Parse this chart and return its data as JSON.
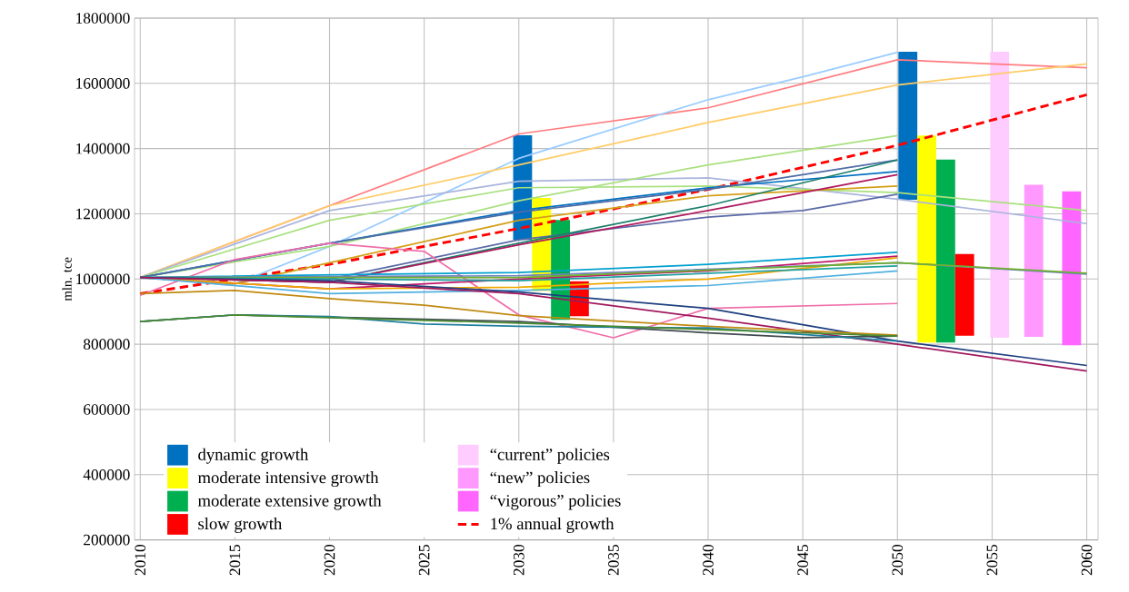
{
  "chart_data": {
    "type": "line",
    "ylabel": "mln. tce",
    "xlim": [
      2009.7,
      2060.6
    ],
    "xticks": [
      2010,
      2015,
      2020,
      2025,
      2030,
      2035,
      2040,
      2045,
      2050,
      2055,
      2060
    ],
    "ylim": [
      200000,
      1800000
    ],
    "yticks": [
      200000,
      400000,
      600000,
      800000,
      1000000,
      1200000,
      1400000,
      1600000,
      1800000
    ],
    "grid": true,
    "legend": "bottom left",
    "marker": "none",
    "series": [
      {
        "name": "dynamic growth",
        "type": "bar",
        "color": "#0070c0",
        "x": [
          2030.2,
          2050.55
        ],
        "base": [
          1120000,
          1243000
        ],
        "values": [
          321000,
          454000
        ]
      },
      {
        "name": "moderate intensive growth",
        "type": "bar",
        "color": "#ffff00",
        "x": [
          2031.2,
          2051.55
        ],
        "base": [
          963000,
          805000
        ],
        "values": [
          286000,
          635000
        ]
      },
      {
        "name": "moderate extensive growth",
        "type": "bar",
        "color": "#00b050",
        "x": [
          2032.2,
          2052.55
        ],
        "base": [
          875000,
          805000
        ],
        "values": [
          306000,
          561000
        ]
      },
      {
        "name": "slow growth",
        "type": "bar",
        "color": "#ff0000",
        "x": [
          2033.2,
          2053.55
        ],
        "base": [
          886000,
          826000
        ],
        "values": [
          107000,
          251000
        ]
      },
      {
        "name": "“current” policies",
        "type": "bar",
        "color": "#ffccff",
        "x": [
          2055.4
        ],
        "base": [
          820000
        ],
        "values": [
          877000
        ]
      },
      {
        "name": "“new” policies",
        "type": "bar",
        "color": "#ff99ff",
        "x": [
          2057.2
        ],
        "base": [
          823000
        ],
        "values": [
          466000
        ]
      },
      {
        "name": "“vigorous” policies",
        "type": "bar",
        "color": "#ff66ff",
        "x": [
          2059.2
        ],
        "base": [
          797000
        ],
        "values": [
          472000
        ]
      },
      {
        "name": "1% annual growth",
        "color": "#ff0000",
        "line_style": "dashed",
        "x": [
          2010,
          2020,
          2030,
          2040,
          2050,
          2060
        ],
        "values": [
          955000,
          1045000,
          1155000,
          1275000,
          1410000,
          1565000
        ]
      },
      {
        "color": "#ff7c80",
        "x": [
          2010,
          2020,
          2030,
          2040,
          2050,
          2055,
          2060
        ],
        "values": [
          1005000,
          1225000,
          1445000,
          1525000,
          1672000,
          1660000,
          1648000
        ]
      },
      {
        "color": "#99ccff",
        "x": [
          2010,
          2015,
          2020,
          2030,
          2040,
          2045,
          2050
        ],
        "values": [
          1005000,
          985000,
          1100000,
          1370000,
          1550000,
          1620000,
          1695000
        ]
      },
      {
        "color": "#ffcc66",
        "x": [
          2010,
          2020,
          2030,
          2040,
          2050,
          2060
        ],
        "values": [
          1005000,
          1225000,
          1350000,
          1480000,
          1595000,
          1660000
        ]
      },
      {
        "color": "#aab4dd",
        "x": [
          2010,
          2020,
          2030,
          2040,
          2050,
          2060
        ],
        "values": [
          1005000,
          1210000,
          1300000,
          1310000,
          1245000,
          1170000
        ]
      },
      {
        "color": "#a9e07f",
        "x": [
          2010,
          2020,
          2030,
          2040,
          2050,
          2060
        ],
        "values": [
          1005000,
          1180000,
          1280000,
          1285000,
          1265000,
          1210000
        ]
      },
      {
        "color": "#a9e07f",
        "x": [
          2010,
          2020,
          2030,
          2040,
          2050
        ],
        "values": [
          1005000,
          1100000,
          1240000,
          1350000,
          1440000
        ]
      },
      {
        "color": "#0070c0",
        "x": [
          2010,
          2020,
          2030,
          2040,
          2050
        ],
        "values": [
          1005000,
          1110000,
          1210000,
          1280000,
          1330000
        ]
      },
      {
        "color": "#4f6da8",
        "x": [
          2010,
          2020,
          2030,
          2040,
          2050
        ],
        "values": [
          1005000,
          1110000,
          1205000,
          1275000,
          1365000
        ]
      },
      {
        "color": "#d4a017",
        "x": [
          2010,
          2015,
          2020,
          2030,
          2040,
          2050
        ],
        "values": [
          1005000,
          985000,
          1050000,
          1180000,
          1255000,
          1285000
        ]
      },
      {
        "color": "#5b6aa8",
        "x": [
          2010,
          2020,
          2030,
          2040,
          2045,
          2050
        ],
        "values": [
          1005000,
          1000000,
          1120000,
          1190000,
          1210000,
          1260000
        ]
      },
      {
        "color": "#1a7f6a",
        "x": [
          2010,
          2020,
          2030,
          2040,
          2050
        ],
        "values": [
          1005000,
          990000,
          1110000,
          1225000,
          1365000
        ]
      },
      {
        "color": "#b0185e",
        "x": [
          2010,
          2020,
          2030,
          2040,
          2050
        ],
        "values": [
          1005000,
          990000,
          1105000,
          1210000,
          1320000
        ]
      },
      {
        "color": "#f06eaa",
        "x": [
          2010,
          2015,
          2020,
          2025,
          2030,
          2035,
          2040,
          2050
        ],
        "values": [
          950000,
          1060000,
          1110000,
          1085000,
          890000,
          820000,
          910000,
          925000
        ]
      },
      {
        "color": "#00a0d0",
        "x": [
          2010,
          2030,
          2040,
          2050
        ],
        "values": [
          1005000,
          1020000,
          1045000,
          1082000
        ]
      },
      {
        "color": "#c0186b",
        "x": [
          2010,
          2020,
          2030,
          2040,
          2050
        ],
        "values": [
          1005000,
          970000,
          1000000,
          1025000,
          1070000
        ]
      },
      {
        "color": "#f0a800",
        "x": [
          2010,
          2020,
          2030,
          2040,
          2050
        ],
        "values": [
          1005000,
          970000,
          975000,
          1000000,
          1065000
        ]
      },
      {
        "color": "#7080c0",
        "x": [
          2010,
          2030,
          2050,
          2060
        ],
        "values": [
          1005000,
          1010000,
          1050000,
          1015000
        ]
      },
      {
        "color": "#70b030",
        "x": [
          2010,
          2030,
          2050,
          2060
        ],
        "values": [
          1005000,
          1005000,
          1050000,
          1018000
        ]
      },
      {
        "color": "#20a0a0",
        "x": [
          2010,
          2030,
          2050
        ],
        "values": [
          1005000,
          995000,
          1040000
        ]
      },
      {
        "color": "#50b0e0",
        "x": [
          2010,
          2020,
          2030,
          2040,
          2050
        ],
        "values": [
          1005000,
          955000,
          965000,
          980000,
          1025000
        ]
      },
      {
        "color": "#1f3f7f",
        "x": [
          2010,
          2020,
          2030,
          2040,
          2050,
          2060
        ],
        "values": [
          1005000,
          995000,
          960000,
          910000,
          810000,
          735000
        ]
      },
      {
        "color": "#a0185e",
        "x": [
          2010,
          2020,
          2030,
          2040,
          2050,
          2060
        ],
        "values": [
          1005000,
          990000,
          955000,
          880000,
          800000,
          718000
        ]
      },
      {
        "color": "#c08a10",
        "x": [
          2010,
          2015,
          2020,
          2025,
          2030,
          2040,
          2050
        ],
        "values": [
          955000,
          965000,
          940000,
          920000,
          888000,
          855000,
          828000
        ]
      },
      {
        "color": "#404a50",
        "x": [
          2010,
          2015,
          2030,
          2040,
          2045,
          2050
        ],
        "values": [
          870000,
          890000,
          870000,
          835000,
          820000,
          825000
        ]
      },
      {
        "color": "#1f7f9f",
        "x": [
          2010,
          2015,
          2020,
          2025,
          2030,
          2040,
          2050
        ],
        "values": [
          870000,
          890000,
          885000,
          862000,
          855000,
          850000,
          810000
        ]
      },
      {
        "color": "#4a8a30",
        "x": [
          2010,
          2015,
          2030,
          2040,
          2050
        ],
        "values": [
          870000,
          890000,
          865000,
          845000,
          825000
        ]
      }
    ]
  }
}
